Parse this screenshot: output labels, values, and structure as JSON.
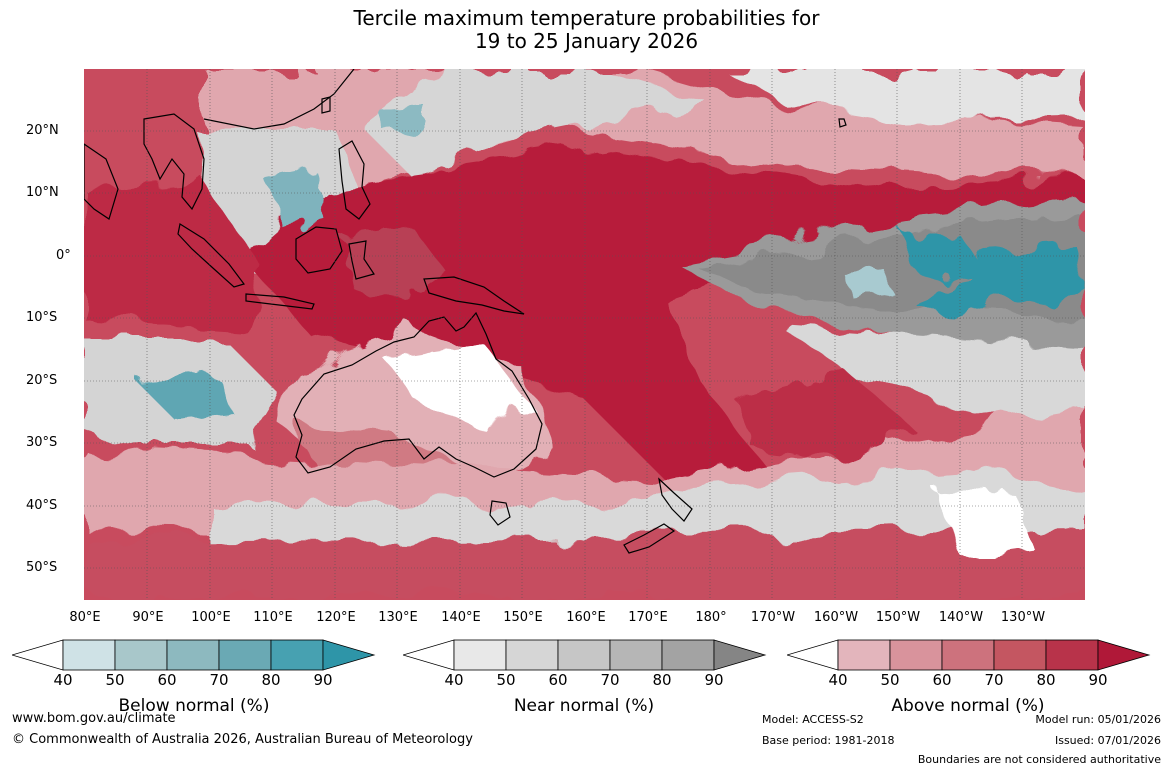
{
  "title": {
    "line1": "Tercile maximum temperature probabilities for",
    "line2": "19 to 25 January 2026"
  },
  "map": {
    "lat_labels": [
      "20°N",
      "10°N",
      "0°",
      "10°S",
      "20°S",
      "30°S",
      "40°S",
      "50°S"
    ],
    "lon_labels": [
      "80°E",
      "90°E",
      "100°E",
      "110°E",
      "120°E",
      "130°E",
      "140°E",
      "150°E",
      "160°E",
      "170°E",
      "180°",
      "170°W",
      "160°W",
      "150°W",
      "140°W",
      "130°W"
    ],
    "colors": {
      "ocean_above_90": "#b71c3a",
      "above_70": "#c4505f",
      "above_60": "#d07a83",
      "above_50": "#e0a7ae",
      "near_normal": "#d0d0d0",
      "near_dark": "#8a8a8a",
      "below_teal": "#2e95a8",
      "below_light": "#a8cad0",
      "land_outline": "#000000"
    }
  },
  "colorbars": {
    "ticks": [
      "40",
      "50",
      "60",
      "70",
      "80",
      "90"
    ],
    "below": {
      "label": "Below normal (%)",
      "colors": [
        "#cfe2e6",
        "#a8c7ca",
        "#8db9bf",
        "#6aa9b4",
        "#47a1b1",
        "#2e95a8"
      ]
    },
    "near": {
      "label": "Near normal (%)",
      "colors": [
        "#e8e8e8",
        "#d6d6d6",
        "#c6c6c6",
        "#b6b6b6",
        "#a3a3a3",
        "#858585"
      ]
    },
    "above": {
      "label": "Above normal (%)",
      "colors": [
        "#e3b5bc",
        "#d9939c",
        "#cd727d",
        "#c45661",
        "#b8334a",
        "#b01838"
      ]
    }
  },
  "footer": {
    "website": "www.bom.gov.au/climate",
    "copyright": "© Commonwealth of Australia 2026, Australian Bureau of Meteorology",
    "model": "Model: ACCESS-S2",
    "base_period": "Base period: 1981-2018",
    "model_run": "Model run: 05/01/2026",
    "issued": "Issued: 07/01/2026",
    "disclaimer": "Boundaries are not considered authoritative"
  }
}
